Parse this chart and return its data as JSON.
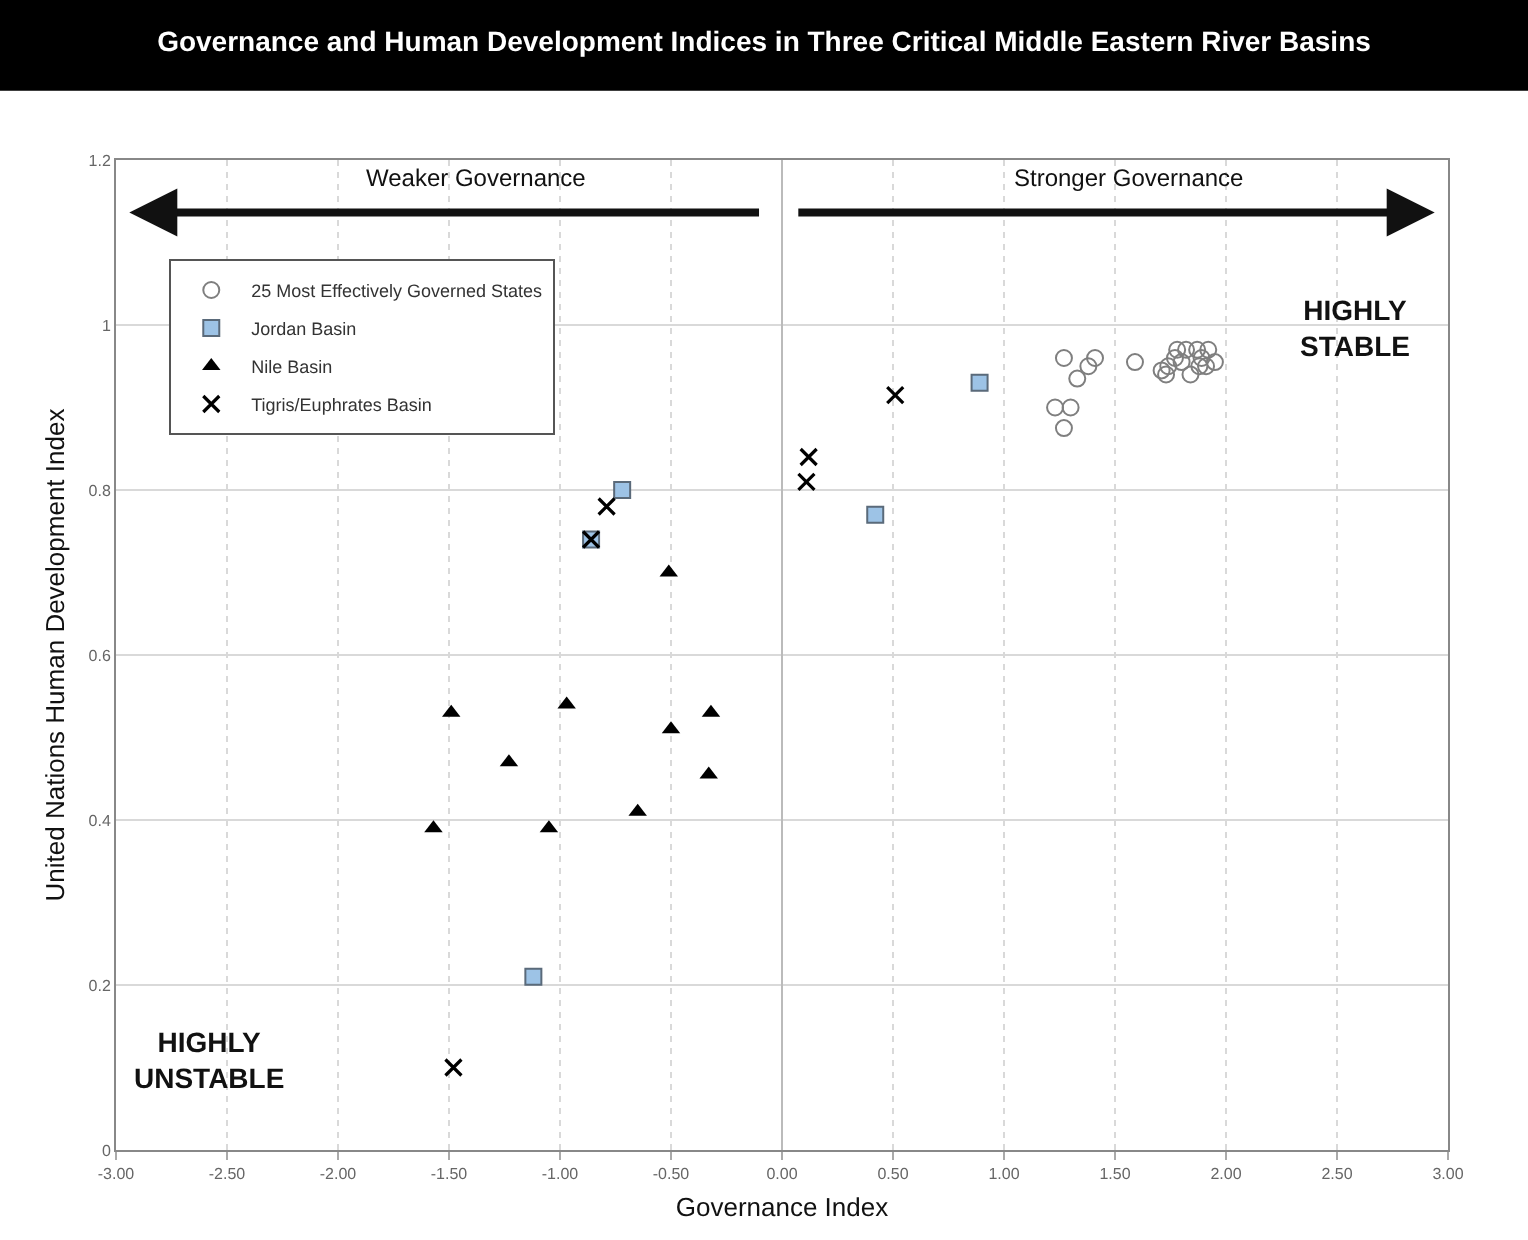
{
  "chart_data": {
    "type": "scatter",
    "title": "Governance and Human Development Indices in Three Critical Middle Eastern River Basins",
    "xlabel": "Governance Index",
    "ylabel": "United Nations Human Development Index",
    "series": [
      {
        "name": "25 Most Effectively Governed States",
        "color": "#7f7f7f",
        "marker": "circle",
        "x": [
          1.27,
          1.41,
          1.38,
          1.33,
          1.23,
          1.3,
          1.27,
          1.59,
          1.71,
          1.74,
          1.78,
          1.83,
          1.87,
          1.92,
          1.84,
          1.89,
          1.95,
          1.8,
          1.86,
          1.91,
          1.77,
          1.82,
          1.73,
          1.85,
          1.88
        ],
        "values": [
          0.96,
          0.96,
          0.95,
          0.935,
          0.9,
          0.9,
          0.875,
          0.955,
          0.945,
          0.95,
          0.97,
          null,
          0.97,
          0.97,
          0.94,
          0.96,
          0.955,
          0.955,
          null,
          0.95,
          0.96,
          0.97,
          0.94,
          null,
          0.95
        ]
      },
      {
        "name": "Jordan Basin",
        "color": "#9dc3e6",
        "marker": "square",
        "x": [
          -0.72,
          -0.86,
          0.89,
          0.42,
          -1.12
        ],
        "values": [
          0.8,
          0.74,
          0.93,
          0.77,
          0.21
        ]
      },
      {
        "name": "Nile Basin",
        "color": "#000000",
        "marker": "triangle",
        "x": [
          -1.49,
          -0.97,
          -1.23,
          -1.57,
          -1.05,
          -0.65,
          -0.5,
          -0.32,
          -0.33,
          -0.51
        ],
        "values": [
          0.53,
          0.54,
          0.47,
          0.39,
          0.39,
          0.41,
          0.51,
          0.53,
          0.455,
          0.7
        ]
      },
      {
        "name": "Tigris/Euphrates Basin",
        "color": "#000000",
        "marker": "cross",
        "x": [
          -0.79,
          -0.86,
          0.12,
          0.11,
          0.51,
          -1.48
        ],
        "values": [
          0.78,
          0.74,
          0.84,
          0.81,
          0.915,
          0.1
        ]
      }
    ],
    "annotations": [
      "Weaker Governance",
      "Stronger Governance",
      "HIGHLY\nSTABLE",
      "HIGHLY\nUNSTABLE"
    ],
    "xlim": [
      -3,
      3
    ],
    "xticks": [
      {
        "value": -3,
        "label": "-3.00"
      },
      {
        "value": -2.5,
        "label": "-2.50"
      },
      {
        "value": -2,
        "label": "-2.00"
      },
      {
        "value": -1.5,
        "label": "-1.50"
      },
      {
        "value": -1,
        "label": "-1.00"
      },
      {
        "value": -0.5,
        "label": "-0.50"
      },
      {
        "value": 0,
        "label": "0.00"
      },
      {
        "value": 0.5,
        "label": "0.50"
      },
      {
        "value": 1,
        "label": "1.00"
      },
      {
        "value": 1.5,
        "label": "1.50"
      },
      {
        "value": 2,
        "label": "2.00"
      },
      {
        "value": 2.5,
        "label": "2.50"
      },
      {
        "value": 3,
        "label": "3.00"
      }
    ],
    "ylim": [
      0,
      1.2
    ],
    "yticks": [
      0,
      0.2,
      0.4,
      0.6,
      0.8,
      1,
      1.2
    ],
    "grid": true,
    "legend": "top left"
  }
}
